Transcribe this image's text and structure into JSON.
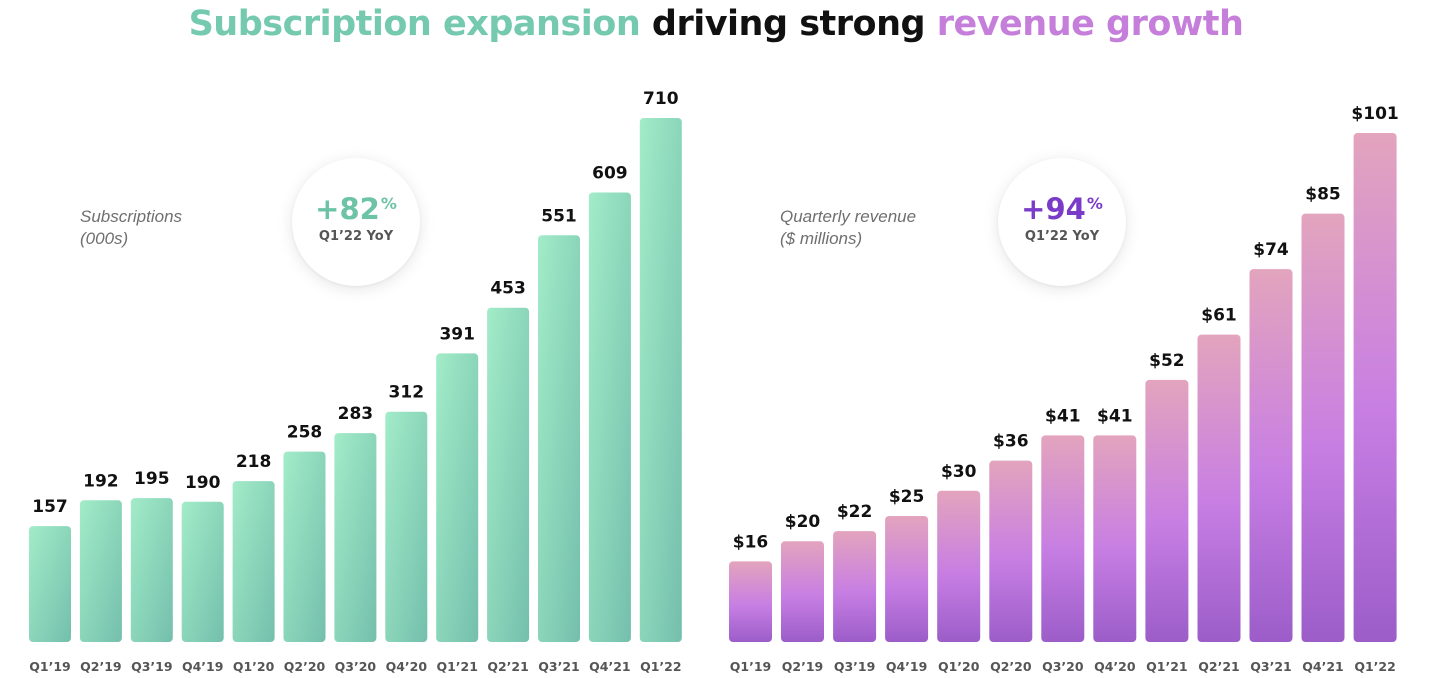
{
  "title": {
    "part1": "Subscription expansion",
    "part2": "driving strong",
    "part3": "revenue growth"
  },
  "colors": {
    "green": "#74c9ae",
    "purple": "#c57fdb",
    "badge_green": "#6cc3a6",
    "badge_purple": "#7a3cc8"
  },
  "subscriptions": {
    "label_line1": "Subscriptions",
    "label_line2": "(000s)",
    "badge_value": "+82",
    "badge_unit": "%",
    "badge_caption": "Q1’22 YoY"
  },
  "revenue": {
    "label_line1": "Quarterly revenue",
    "label_line2": "($ millions)",
    "badge_value": "+94",
    "badge_unit": "%",
    "badge_caption": "Q1’22 YoY"
  },
  "chart_data": [
    {
      "type": "bar",
      "title": "Subscriptions (000s)",
      "categories": [
        "Q1’19",
        "Q2’19",
        "Q3’19",
        "Q4’19",
        "Q1’20",
        "Q2’20",
        "Q3’20",
        "Q4’20",
        "Q1’21",
        "Q2’21",
        "Q3’21",
        "Q4’21",
        "Q1’22"
      ],
      "values": [
        157,
        192,
        195,
        190,
        218,
        258,
        283,
        312,
        391,
        453,
        551,
        609,
        710
      ],
      "labels": [
        "157",
        "192",
        "195",
        "190",
        "218",
        "258",
        "283",
        "312",
        "391",
        "453",
        "551",
        "609",
        "710"
      ],
      "ylim": [
        0,
        710
      ],
      "xlabel": "",
      "ylabel": "",
      "grid": false
    },
    {
      "type": "bar",
      "title": "Quarterly revenue ($ millions)",
      "categories": [
        "Q1’19",
        "Q2’19",
        "Q3’19",
        "Q4’19",
        "Q1’20",
        "Q2’20",
        "Q3’20",
        "Q4’20",
        "Q1’21",
        "Q2’21",
        "Q3’21",
        "Q4’21",
        "Q1’22"
      ],
      "values": [
        16,
        20,
        22,
        25,
        30,
        36,
        41,
        41,
        52,
        61,
        74,
        85,
        101
      ],
      "labels": [
        "$16",
        "$20",
        "$22",
        "$25",
        "$30",
        "$36",
        "$41",
        "$41",
        "$52",
        "$61",
        "$74",
        "$85",
        "$101"
      ],
      "ylim": [
        0,
        101
      ],
      "xlabel": "",
      "ylabel": "",
      "grid": false
    }
  ]
}
